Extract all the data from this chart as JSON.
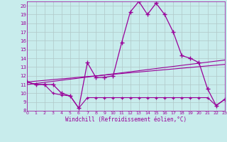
{
  "xlabel": "Windchill (Refroidissement éolien,°C)",
  "bg_color": "#c8ecec",
  "line_color": "#990099",
  "grid_color": "#b0c8c8",
  "x": [
    0,
    1,
    2,
    3,
    4,
    5,
    6,
    7,
    8,
    9,
    10,
    11,
    12,
    13,
    14,
    15,
    16,
    17,
    18,
    19,
    20,
    21,
    22,
    23
  ],
  "line1": [
    11.3,
    11.0,
    11.0,
    11.0,
    10.0,
    9.7,
    8.3,
    13.5,
    11.8,
    11.8,
    12.0,
    15.8,
    19.3,
    20.5,
    19.0,
    20.3,
    19.0,
    17.0,
    14.3,
    14.0,
    13.5,
    10.5,
    8.6,
    9.3
  ],
  "line2": [
    11.3,
    11.0,
    11.0,
    10.0,
    9.8,
    9.7,
    8.3,
    9.5,
    9.5,
    9.5,
    9.5,
    9.5,
    9.5,
    9.5,
    9.5,
    9.5,
    9.5,
    9.5,
    9.5,
    9.5,
    9.5,
    9.5,
    8.6,
    9.3
  ],
  "line3_x": [
    0,
    23
  ],
  "line3_y": [
    11.3,
    13.3
  ],
  "line4_x": [
    0,
    23
  ],
  "line4_y": [
    11.0,
    13.8
  ],
  "ylim": [
    8,
    20.5
  ],
  "xlim": [
    0,
    23
  ],
  "yticks": [
    8,
    9,
    10,
    11,
    12,
    13,
    14,
    15,
    16,
    17,
    18,
    19,
    20
  ],
  "xticks": [
    0,
    1,
    2,
    3,
    4,
    5,
    6,
    7,
    8,
    9,
    10,
    11,
    12,
    13,
    14,
    15,
    16,
    17,
    18,
    19,
    20,
    21,
    22,
    23
  ]
}
